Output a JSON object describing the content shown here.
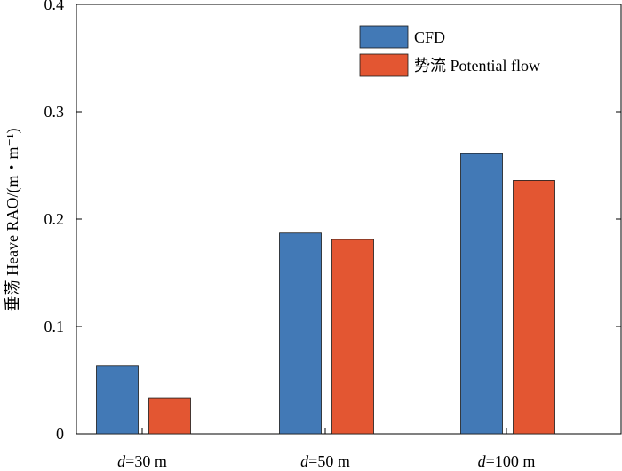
{
  "chart_data": {
    "type": "bar",
    "categories": [
      "d=30 m",
      "d=50 m",
      "d=100 m"
    ],
    "category_parts": [
      {
        "var": "d",
        "rest": "=30 m"
      },
      {
        "var": "d",
        "rest": "=50 m"
      },
      {
        "var": "d",
        "rest": "=100 m"
      }
    ],
    "series": [
      {
        "name": "CFD",
        "values": [
          0.063,
          0.187,
          0.261
        ],
        "color": "#4279b6"
      },
      {
        "name": "势流 Potential flow",
        "values": [
          0.033,
          0.181,
          0.236
        ],
        "color": "#e35632"
      }
    ],
    "ylabel": "垂荡 Heave RAO/(m・m⁻¹)",
    "ylim": [
      0,
      0.4
    ],
    "yticks": [
      "0",
      "0.1",
      "0.2",
      "0.3",
      "0.4"
    ],
    "legend_position": "top-right",
    "grid": false
  }
}
